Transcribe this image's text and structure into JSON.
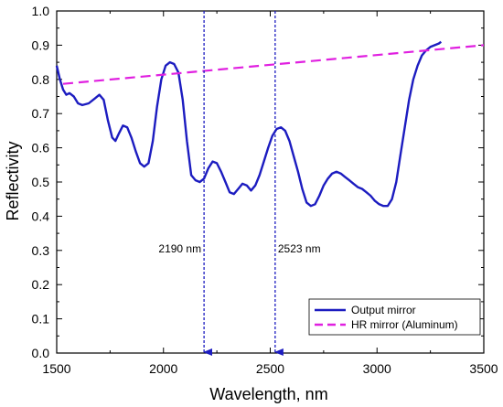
{
  "chart_data": {
    "type": "line",
    "xlabel": "Wavelength, nm",
    "ylabel": "Reflectivity",
    "xlim": [
      1500,
      3500
    ],
    "ylim": [
      0.0,
      1.0
    ],
    "x_ticks": [
      1500,
      2000,
      2500,
      3000,
      3500
    ],
    "y_ticks": [
      0.0,
      0.1,
      0.2,
      0.3,
      0.4,
      0.5,
      0.6,
      0.7,
      0.8,
      0.9,
      1.0
    ],
    "x_tick_labels": [
      "1500",
      "2000",
      "2500",
      "3000",
      "3500"
    ],
    "y_tick_labels": [
      "0.0",
      "0.1",
      "0.2",
      "0.3",
      "0.4",
      "0.5",
      "0.6",
      "0.7",
      "0.8",
      "0.9",
      "1.0"
    ],
    "legend_position": "bottom-right",
    "series": [
      {
        "name": "Output mirror",
        "color": "#1c1cc0",
        "style": "solid",
        "x": [
          1500,
          1515,
          1530,
          1545,
          1560,
          1580,
          1600,
          1620,
          1650,
          1680,
          1700,
          1720,
          1740,
          1760,
          1775,
          1790,
          1810,
          1830,
          1850,
          1870,
          1890,
          1910,
          1930,
          1950,
          1970,
          1990,
          2010,
          2030,
          2050,
          2070,
          2090,
          2110,
          2130,
          2150,
          2170,
          2190,
          2210,
          2230,
          2250,
          2270,
          2290,
          2310,
          2330,
          2350,
          2370,
          2390,
          2410,
          2430,
          2450,
          2470,
          2490,
          2510,
          2530,
          2550,
          2570,
          2590,
          2610,
          2630,
          2650,
          2670,
          2690,
          2710,
          2730,
          2750,
          2770,
          2790,
          2810,
          2830,
          2850,
          2870,
          2890,
          2910,
          2930,
          2950,
          2970,
          2990,
          3010,
          3030,
          3050,
          3070,
          3090,
          3110,
          3130,
          3150,
          3170,
          3190,
          3210,
          3230,
          3250,
          3270,
          3290,
          3300
        ],
        "y": [
          0.84,
          0.8,
          0.77,
          0.755,
          0.76,
          0.75,
          0.73,
          0.725,
          0.73,
          0.745,
          0.755,
          0.74,
          0.68,
          0.63,
          0.62,
          0.64,
          0.665,
          0.66,
          0.63,
          0.59,
          0.555,
          0.545,
          0.555,
          0.62,
          0.72,
          0.8,
          0.84,
          0.85,
          0.845,
          0.82,
          0.74,
          0.62,
          0.52,
          0.505,
          0.5,
          0.51,
          0.54,
          0.56,
          0.555,
          0.53,
          0.5,
          0.47,
          0.465,
          0.48,
          0.495,
          0.49,
          0.475,
          0.49,
          0.52,
          0.56,
          0.6,
          0.635,
          0.655,
          0.66,
          0.65,
          0.62,
          0.575,
          0.53,
          0.48,
          0.44,
          0.43,
          0.435,
          0.46,
          0.49,
          0.51,
          0.525,
          0.53,
          0.525,
          0.515,
          0.505,
          0.495,
          0.485,
          0.48,
          0.47,
          0.46,
          0.445,
          0.435,
          0.43,
          0.43,
          0.45,
          0.5,
          0.58,
          0.66,
          0.74,
          0.8,
          0.84,
          0.87,
          0.885,
          0.895,
          0.9,
          0.905,
          0.91
        ]
      },
      {
        "name": "HR mirror (Aluminum)",
        "color": "#e020e0",
        "style": "dashed",
        "x": [
          1530,
          3500
        ],
        "y": [
          0.787,
          0.9
        ]
      }
    ],
    "annotations": [
      {
        "text": "2190 nm",
        "x": 2190
      },
      {
        "text": "2523 nm",
        "x": 2523
      }
    ],
    "annotation_line_color": "#1c1cc0"
  }
}
